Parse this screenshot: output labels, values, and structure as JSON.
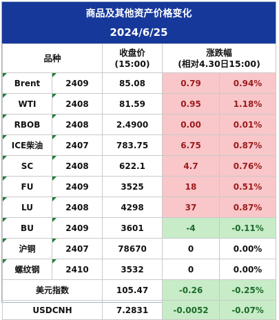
{
  "title": "商品及其他资产价格变化",
  "date": "2024/6/25",
  "headers": {
    "product": "品种",
    "close_line1": "收盘价",
    "close_line2": "(15:00)",
    "change_line1": "涨跌幅",
    "change_line2": "(相对4.30日15:00)"
  },
  "rows": [
    {
      "name": "Brent",
      "contract": "2409",
      "close": "85.08",
      "change": "0.79",
      "pct": "0.94%",
      "dir": "up"
    },
    {
      "name": "WTI",
      "contract": "2408",
      "close": "81.59",
      "change": "0.95",
      "pct": "1.18%",
      "dir": "up"
    },
    {
      "name": "RBOB",
      "contract": "2408",
      "close": "2.4900",
      "change": "0.00",
      "pct": "0.01%",
      "dir": "up"
    },
    {
      "name": "ICE柴油",
      "contract": "2407",
      "close": "783.75",
      "change": "6.75",
      "pct": "0.87%",
      "dir": "up"
    },
    {
      "name": "SC",
      "contract": "2408",
      "close": "622.1",
      "change": "4.7",
      "pct": "0.76%",
      "dir": "up"
    },
    {
      "name": "FU",
      "contract": "2409",
      "close": "3525",
      "change": "18",
      "pct": "0.51%",
      "dir": "up"
    },
    {
      "name": "LU",
      "contract": "2408",
      "close": "4298",
      "change": "37",
      "pct": "0.87%",
      "dir": "up"
    },
    {
      "name": "BU",
      "contract": "2409",
      "close": "3601",
      "change": "-4",
      "pct": "-0.11%",
      "dir": "dn"
    },
    {
      "name": "沪铜",
      "contract": "2407",
      "close": "78670",
      "change": "0",
      "pct": "0.00%",
      "dir": "fl"
    },
    {
      "name": "螺纹钢",
      "contract": "2410",
      "close": "3532",
      "change": "0",
      "pct": "0.00%",
      "dir": "fl"
    }
  ],
  "footer_rows": [
    {
      "name": "美元指数",
      "close": "105.47",
      "change": "-0.26",
      "pct": "-0.25%",
      "dir": "dn"
    },
    {
      "name": "USDCNH",
      "close": "7.2831",
      "change": "-0.0052",
      "pct": "-0.07%",
      "dir": "dn"
    }
  ],
  "colors": {
    "header_bg": "#16389a",
    "up_bg": "#f9c6c9",
    "down_bg": "#c7ecc7",
    "corner_mark": "#1e7d32"
  }
}
